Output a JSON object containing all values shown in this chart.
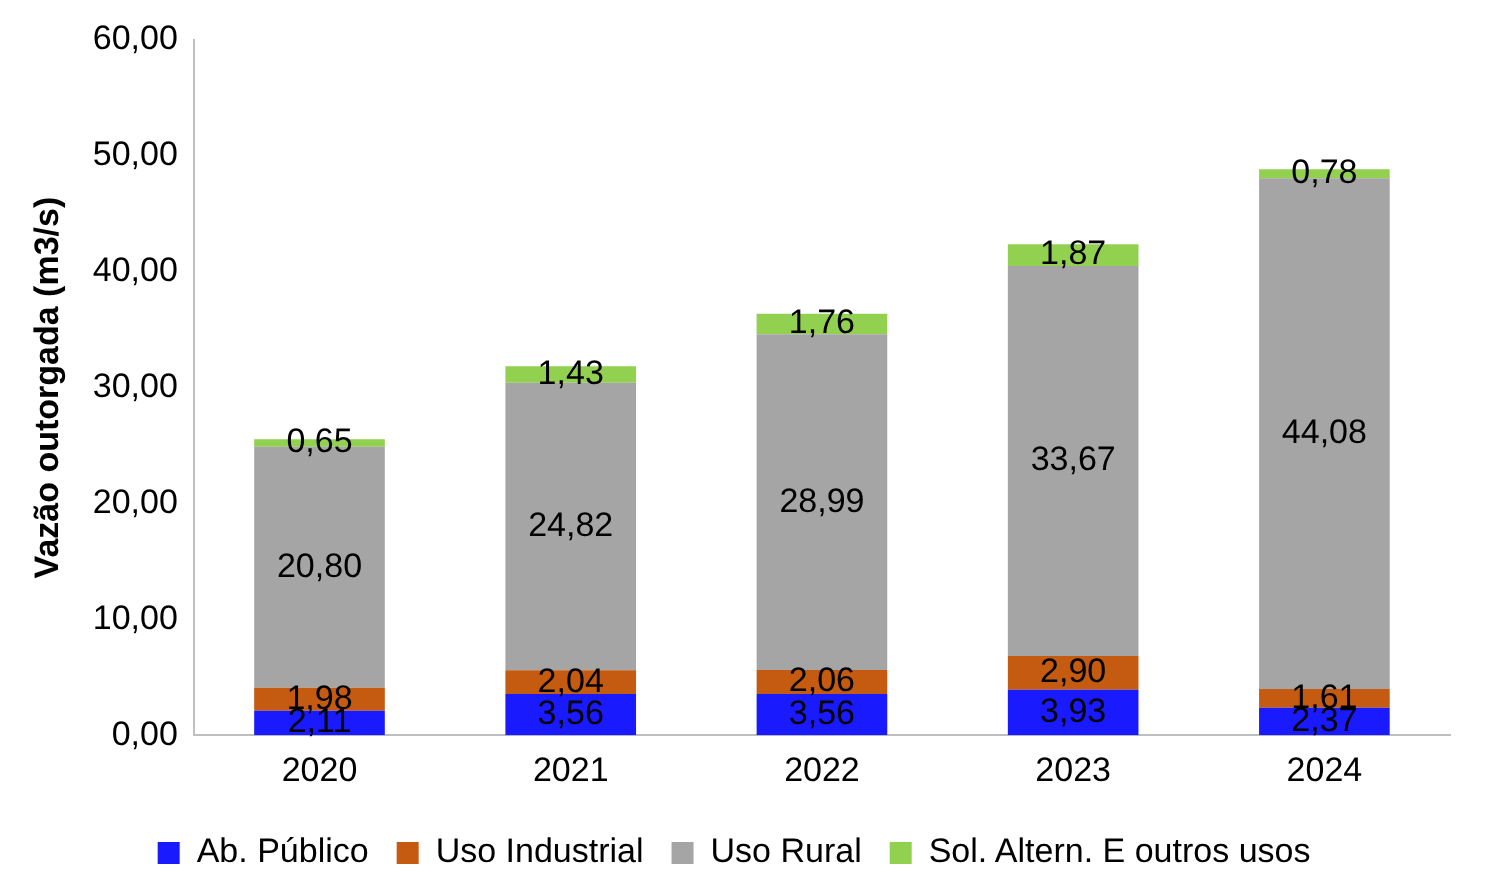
{
  "chart_data": {
    "type": "bar",
    "stacked": true,
    "ylabel": "Vazão outorgada (m3/s)",
    "categories": [
      "2020",
      "2021",
      "2022",
      "2023",
      "2024"
    ],
    "series": [
      {
        "name": "Ab. Público",
        "color": "#1a1aff",
        "values": [
          2.11,
          3.56,
          3.56,
          3.93,
          2.37
        ],
        "value_labels": [
          "2,11",
          "3,56",
          "3,56",
          "3,93",
          "2,37"
        ]
      },
      {
        "name": "Uso Industrial",
        "color": "#c55a11",
        "values": [
          1.98,
          2.04,
          2.06,
          2.9,
          1.61
        ],
        "value_labels": [
          "1,98",
          "2,04",
          "2,06",
          "2,90",
          "1,61"
        ]
      },
      {
        "name": "Uso Rural",
        "color": "#a5a5a5",
        "values": [
          20.8,
          24.82,
          28.99,
          33.67,
          44.08
        ],
        "value_labels": [
          "20,80",
          "24,82",
          "28,99",
          "33,67",
          "44,08"
        ]
      },
      {
        "name": "Sol. Altern. E outros usos",
        "color": "#92d050",
        "values": [
          0.65,
          1.43,
          1.76,
          1.87,
          0.78
        ],
        "value_labels": [
          "0,65",
          "1,43",
          "1,76",
          "1,87",
          "0,78"
        ]
      }
    ],
    "ylim": [
      0,
      60
    ],
    "yticks": [
      {
        "value": 0,
        "label": "0,00"
      },
      {
        "value": 10,
        "label": "10,00"
      },
      {
        "value": 20,
        "label": "20,00"
      },
      {
        "value": 30,
        "label": "30,00"
      },
      {
        "value": 40,
        "label": "40,00"
      },
      {
        "value": 50,
        "label": "50,00"
      },
      {
        "value": 60,
        "label": "60,00"
      }
    ],
    "grid": false,
    "legend": "bottom"
  }
}
